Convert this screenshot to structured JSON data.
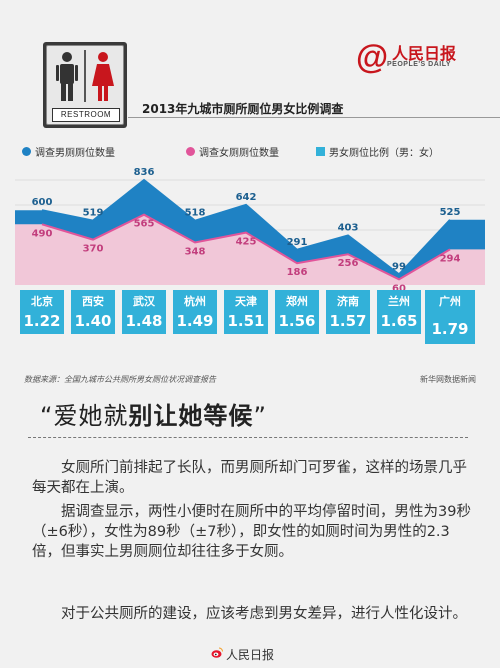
{
  "header": {
    "sign_label": "RESTROOM",
    "logo_mark": "@",
    "logo_cn": "人民日报",
    "logo_en": "PEOPLE'S DAILY",
    "title": "2013年九城市厕所厕位男女比例调查"
  },
  "legend": {
    "male": "调查男厕厕位数量",
    "female": "调查女厕厕位数量",
    "ratio": "男女厕位比例（男：女）"
  },
  "colors": {
    "male": "#1f82c4",
    "female": "#e1559a",
    "ratio": "#32b1d9",
    "female_fill": "#f1c7d8",
    "male_fill": "#1f82c4"
  },
  "chart_data": {
    "type": "area",
    "title": "2013年九城市厕所厕位男女比例调查",
    "categories": [
      "北京",
      "西安",
      "武汉",
      "杭州",
      "天津",
      "郑州",
      "济南",
      "兰州",
      "广州"
    ],
    "series": [
      {
        "name": "调查男厕厕位数量",
        "values": [
          600,
          519,
          836,
          518,
          642,
          291,
          403,
          99,
          525
        ]
      },
      {
        "name": "调查女厕厕位数量",
        "values": [
          490,
          370,
          565,
          348,
          425,
          186,
          256,
          60,
          294
        ]
      },
      {
        "name": "男女厕位比例（男：女）",
        "values": [
          1.22,
          1.4,
          1.48,
          1.49,
          1.51,
          1.56,
          1.57,
          1.65,
          1.79
        ]
      }
    ],
    "ratio_labels": [
      "1.22",
      "1.40",
      "1.48",
      "1.49",
      "1.51",
      "1.56",
      "1.57",
      "1.65",
      "1.79"
    ]
  },
  "source": {
    "left": "数据来源：全国九城市公共厕所男女厕位状况调查报告",
    "right": "新华网数据新闻"
  },
  "quote": {
    "open": "“",
    "normal": "爱她就",
    "bold": "别让她等候",
    "close": "”"
  },
  "paragraphs": [
    "女厕所门前排起了长队，而男厕所却门可罗雀，这样的场景几乎每天都在上演。",
    "据调查显示，两性小便时在厕所中的平均停留时间，男性为39秒（±6秒），女性为89秒（±7秒），即女性的如厕时间为男性的2.3倍，但事实上男厕厕位却往往多于女厕。",
    "对于公共厕所的建设，应该考虑到男女差异，进行人性化设计。"
  ],
  "footer": {
    "text": "人民日报",
    "icon": "weibo-icon"
  }
}
